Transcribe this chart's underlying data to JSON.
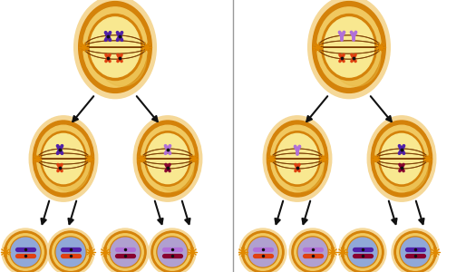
{
  "bg_color": "#ffffff",
  "cell_outer": "#d4820a",
  "cell_glow": "#f5d898",
  "cell_cytoplasm": "#f0c860",
  "spindle_color": "#7a3a00",
  "spindle_dot": "#cc7700",
  "chr_purple": "#5020a8",
  "chr_violet": "#8030c0",
  "chr_lavender": "#b070d8",
  "chr_orange": "#e04010",
  "chr_red": "#880030",
  "chr_maroon": "#600020",
  "nucleus_blue": "#90a8d8",
  "nucleus_lavender": "#b0a0d0",
  "starburst": "#e08800",
  "arrow_color": "#111111",
  "divider_color": "#999999"
}
